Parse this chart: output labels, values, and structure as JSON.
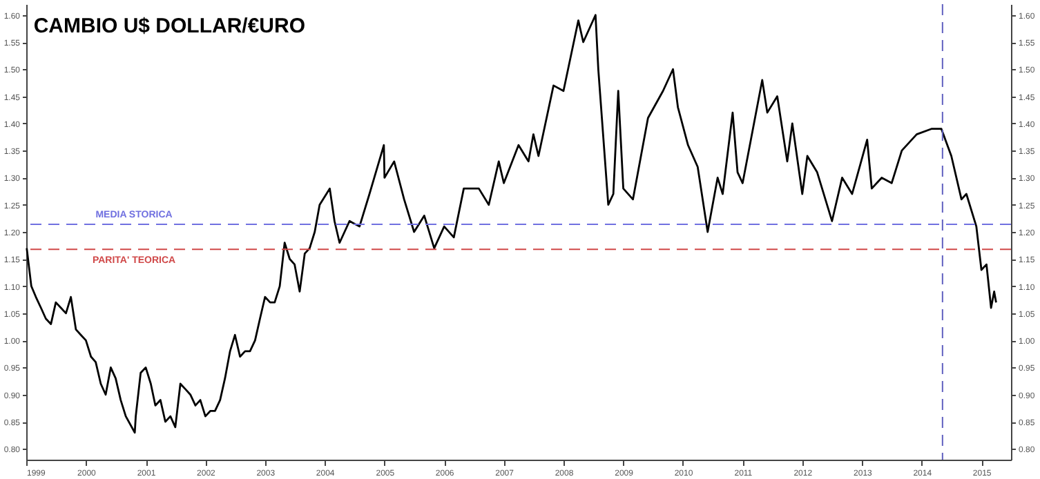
{
  "chart_data": {
    "type": "line",
    "title": "CAMBIO U$ DOLLAR/€URO",
    "x": [
      "1999-01-04",
      "1999-02",
      "1999-03",
      "1999-04",
      "1999-05",
      "1999-06",
      "1999-07",
      "1999-08",
      "1999-09",
      "1999-10",
      "1999-11",
      "1999-12",
      "2000-01",
      "2000-02",
      "2000-03",
      "2000-04",
      "2000-05",
      "2000-06",
      "2000-07",
      "2000-08",
      "2000-09",
      "2000-10-26",
      "2000-11",
      "2000-12",
      "2001-01",
      "2001-02",
      "2001-03",
      "2001-04",
      "2001-05",
      "2001-06",
      "2001-07",
      "2001-08",
      "2001-09",
      "2001-10",
      "2001-11",
      "2001-12",
      "2002-01",
      "2002-02",
      "2002-03",
      "2002-04",
      "2002-05",
      "2002-06",
      "2002-07",
      "2002-08",
      "2002-09",
      "2002-10",
      "2002-11",
      "2002-12",
      "2003-01",
      "2003-02",
      "2003-03",
      "2003-04",
      "2003-05",
      "2003-06",
      "2003-07",
      "2003-08",
      "2003-09",
      "2003-10",
      "2003-11",
      "2003-12",
      "2004-02",
      "2004-03",
      "2004-04",
      "2004-06",
      "2004-08",
      "2004-10",
      "2004-12-28",
      "2005-01",
      "2005-03",
      "2005-05",
      "2005-07",
      "2005-09",
      "2005-11",
      "2006-01",
      "2006-03",
      "2006-05",
      "2006-08",
      "2006-10",
      "2006-12",
      "2007-01",
      "2007-04",
      "2007-06",
      "2007-07",
      "2007-08",
      "2007-11",
      "2008-01",
      "2008-04",
      "2008-05",
      "2008-07-15",
      "2008-08",
      "2008-10",
      "2008-11",
      "2008-12",
      "2009-01",
      "2009-03",
      "2009-06",
      "2009-09",
      "2009-11",
      "2009-12",
      "2010-02",
      "2010-04",
      "2010-06",
      "2010-08",
      "2010-09",
      "2010-11",
      "2010-12",
      "2011-01",
      "2011-05",
      "2011-06",
      "2011-08",
      "2011-10",
      "2011-11",
      "2012-01",
      "2012-02",
      "2012-04",
      "2012-07",
      "2012-09",
      "2012-11",
      "2013-02",
      "2013-03",
      "2013-05",
      "2013-07",
      "2013-09",
      "2013-12",
      "2014-03",
      "2014-05",
      "2014-07",
      "2014-09",
      "2014-10",
      "2014-12",
      "2015-01",
      "2015-02",
      "2015-03",
      "2015-03-20",
      "2015-04"
    ],
    "series": [
      {
        "color": "#000000",
        "values": [
          1.17,
          1.1,
          1.08,
          1.06,
          1.04,
          1.03,
          1.07,
          1.06,
          1.05,
          1.08,
          1.02,
          1.01,
          1.0,
          0.97,
          0.96,
          0.92,
          0.9,
          0.95,
          0.93,
          0.89,
          0.86,
          0.83,
          0.86,
          0.94,
          0.95,
          0.92,
          0.88,
          0.89,
          0.85,
          0.86,
          0.84,
          0.92,
          0.91,
          0.9,
          0.88,
          0.89,
          0.86,
          0.87,
          0.87,
          0.89,
          0.93,
          0.98,
          1.01,
          0.97,
          0.98,
          0.98,
          1.0,
          1.04,
          1.08,
          1.07,
          1.07,
          1.1,
          1.18,
          1.15,
          1.14,
          1.09,
          1.16,
          1.17,
          1.2,
          1.25,
          1.28,
          1.22,
          1.18,
          1.22,
          1.21,
          1.27,
          1.36,
          1.3,
          1.33,
          1.26,
          1.2,
          1.23,
          1.17,
          1.21,
          1.19,
          1.28,
          1.28,
          1.25,
          1.33,
          1.29,
          1.36,
          1.33,
          1.38,
          1.34,
          1.47,
          1.46,
          1.59,
          1.55,
          1.6,
          1.5,
          1.25,
          1.27,
          1.46,
          1.28,
          1.26,
          1.41,
          1.46,
          1.5,
          1.43,
          1.36,
          1.32,
          1.2,
          1.3,
          1.27,
          1.42,
          1.31,
          1.29,
          1.48,
          1.42,
          1.45,
          1.33,
          1.4,
          1.27,
          1.34,
          1.31,
          1.22,
          1.3,
          1.27,
          1.37,
          1.28,
          1.3,
          1.29,
          1.35,
          1.38,
          1.39,
          1.39,
          1.34,
          1.26,
          1.27,
          1.21,
          1.13,
          1.14,
          1.06,
          1.09,
          1.07
        ]
      }
    ],
    "xlim": [
      "1999-01-01",
      "2015-07-01"
    ],
    "xticks": [
      "1999",
      "2000",
      "2001",
      "2002",
      "2003",
      "2004",
      "2005",
      "2006",
      "2007",
      "2008",
      "2009",
      "2010",
      "2011",
      "2012",
      "2013",
      "2014",
      "2015"
    ],
    "ylim": [
      0.78,
      1.62
    ],
    "yticks": [
      {
        "value": 0.8,
        "label": "0.80"
      },
      {
        "value": 0.85,
        "label": "0.85"
      },
      {
        "value": 0.9,
        "label": "0.90"
      },
      {
        "value": 0.95,
        "label": "0.95"
      },
      {
        "value": 1.0,
        "label": "1.00"
      },
      {
        "value": 1.05,
        "label": "1.05"
      },
      {
        "value": 1.1,
        "label": "1.10"
      },
      {
        "value": 1.15,
        "label": "1.15"
      },
      {
        "value": 1.2,
        "label": "1.20"
      },
      {
        "value": 1.25,
        "label": "1.25"
      },
      {
        "value": 1.3,
        "label": "1.30"
      },
      {
        "value": 1.35,
        "label": "1.35"
      },
      {
        "value": 1.4,
        "label": "1.40"
      },
      {
        "value": 1.45,
        "label": "1.45"
      },
      {
        "value": 1.5,
        "label": "1.50"
      },
      {
        "value": 1.55,
        "label": "1.55"
      },
      {
        "value": 1.6,
        "label": "1.60"
      }
    ],
    "y2lim": [
      0.78,
      1.62
    ],
    "y2ticks": [
      {
        "value": 0.8,
        "label": "0.80"
      },
      {
        "value": 0.85,
        "label": "0.85"
      },
      {
        "value": 0.9,
        "label": "0.90"
      },
      {
        "value": 0.95,
        "label": "0.95"
      },
      {
        "value": 1.0,
        "label": "1.00"
      },
      {
        "value": 1.05,
        "label": "1.05"
      },
      {
        "value": 1.1,
        "label": "1.10"
      },
      {
        "value": 1.15,
        "label": "1.15"
      },
      {
        "value": 1.2,
        "label": "1.20"
      },
      {
        "value": 1.25,
        "label": "1.25"
      },
      {
        "value": 1.3,
        "label": "1.30"
      },
      {
        "value": 1.35,
        "label": "1.35"
      },
      {
        "value": 1.4,
        "label": "1.40"
      },
      {
        "value": 1.45,
        "label": "1.45"
      },
      {
        "value": 1.5,
        "label": "1.50"
      },
      {
        "value": 1.55,
        "label": "1.55"
      },
      {
        "value": 1.6,
        "label": "1.60"
      }
    ],
    "ref_lines": [
      {
        "axis": "y",
        "value": 1.214,
        "label": "MEDIA STORICA",
        "color": "#7070e0",
        "line_style": "dashed"
      },
      {
        "axis": "y",
        "value": 1.168,
        "label": "PARITA' TEORICA",
        "color": "#d04848",
        "line_style": "dashed"
      },
      {
        "axis": "x",
        "value": "2014-05-08",
        "color": "#6060c0",
        "line_style": "dotted"
      }
    ],
    "grid": false
  }
}
